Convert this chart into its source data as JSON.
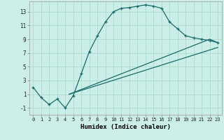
{
  "xlabel": "Humidex (Indice chaleur)",
  "bg_color": "#cceee8",
  "grid_color": "#aaddcc",
  "line_color": "#1a6b6b",
  "xmin": -0.5,
  "xmax": 23.5,
  "ymin": -2.0,
  "ymax": 14.5,
  "yticks": [
    -1,
    1,
    3,
    5,
    7,
    9,
    11,
    13
  ],
  "xticks": [
    0,
    1,
    2,
    3,
    4,
    5,
    6,
    7,
    8,
    9,
    10,
    11,
    12,
    13,
    14,
    15,
    16,
    17,
    18,
    19,
    20,
    21,
    22,
    23
  ],
  "series1_x": [
    0,
    1,
    2,
    3,
    4,
    5,
    6,
    7,
    8,
    9,
    10,
    11,
    12,
    13,
    14,
    15,
    16,
    17,
    18,
    19,
    20,
    21,
    22,
    23
  ],
  "series1_y": [
    2.0,
    0.5,
    -0.5,
    0.3,
    -1.0,
    0.8,
    4.0,
    7.2,
    9.5,
    11.5,
    13.0,
    13.5,
    13.6,
    13.8,
    14.0,
    13.8,
    13.5,
    11.5,
    10.5,
    9.5,
    9.2,
    9.0,
    8.8,
    8.5
  ],
  "series2_x": [
    4.5,
    22,
    23
  ],
  "series2_y": [
    1.0,
    9.0,
    8.5
  ],
  "series3_x": [
    4.5,
    23
  ],
  "series3_y": [
    1.0,
    7.8
  ],
  "marker_size": 3.5,
  "lw": 0.9
}
